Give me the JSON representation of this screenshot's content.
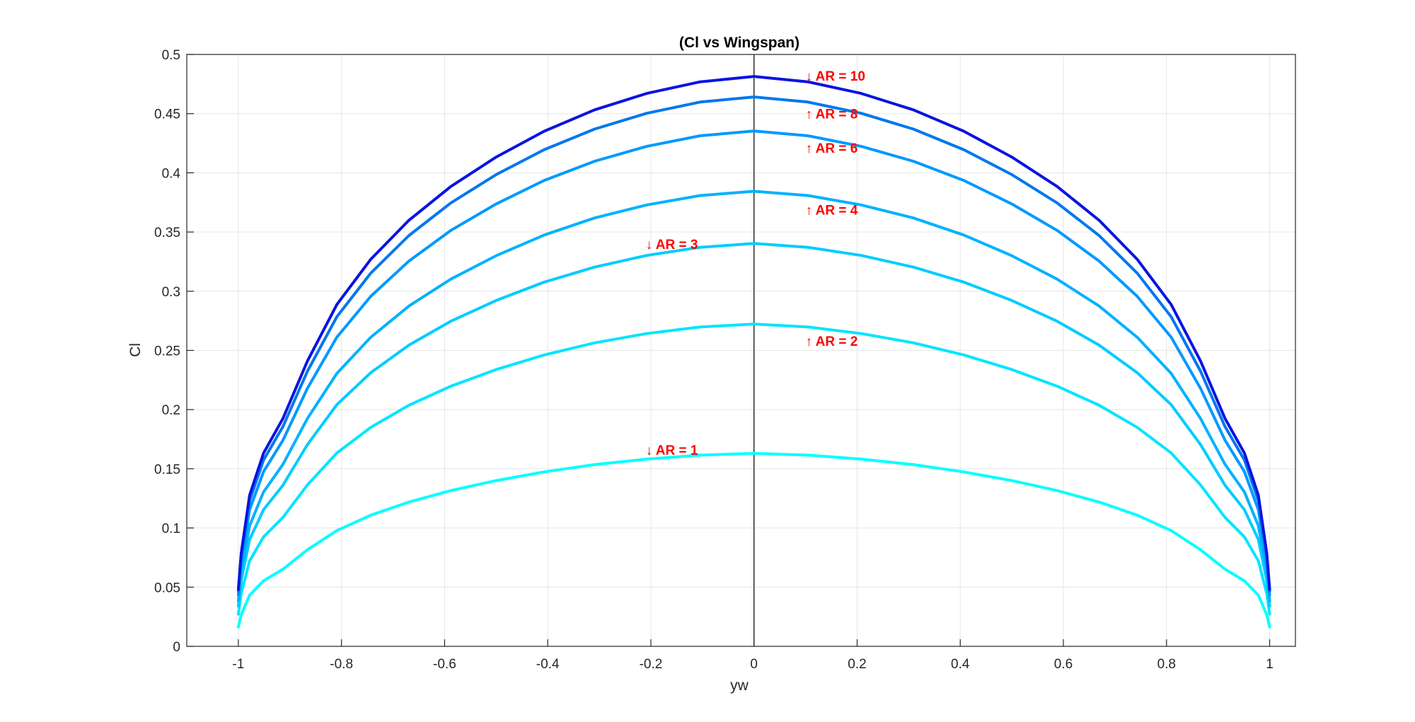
{
  "chart_data": {
    "type": "line",
    "title": "(Cl vs Wingspan)",
    "xlabel": "yw",
    "ylabel": "Cl",
    "xlim": [
      -1.1,
      1.05
    ],
    "ylim": [
      0,
      0.5
    ],
    "xticks": [
      -1,
      -0.8,
      -0.6,
      -0.4,
      -0.2,
      0,
      0.2,
      0.4,
      0.6,
      0.8,
      1
    ],
    "xtick_labels": [
      "-1",
      "-0.8",
      "-0.6",
      "-0.4",
      "-0.2",
      "0",
      "0.2",
      "0.4",
      "0.6",
      "0.8",
      "1"
    ],
    "yticks": [
      0,
      0.05,
      0.1,
      0.15,
      0.2,
      0.25,
      0.3,
      0.35,
      0.4,
      0.45,
      0.5
    ],
    "ytick_labels": [
      "0",
      "0.05",
      "0.1",
      "0.15",
      "0.2",
      "0.25",
      "0.3",
      "0.35",
      "0.4",
      "0.45",
      "0.5"
    ],
    "grid": true,
    "zero_line_x": 0,
    "x": [
      -1,
      -0.9945,
      -0.9781,
      -0.9511,
      -0.9135,
      -0.866,
      -0.809,
      -0.7431,
      -0.6691,
      -0.5878,
      -0.5,
      -0.4067,
      -0.309,
      -0.2079,
      -0.1045,
      0,
      0.1045,
      0.2079,
      0.309,
      0.4067,
      0.5,
      0.5878,
      0.6691,
      0.7431,
      0.809,
      0.866,
      0.9135,
      0.9511,
      0.9781,
      0.9945,
      1
    ],
    "series": [
      {
        "id": "ar1",
        "color": "#00ffff",
        "values": [
          0.0163,
          0.0266,
          0.0432,
          0.0553,
          0.0652,
          0.0816,
          0.0978,
          0.1108,
          0.1219,
          0.1316,
          0.14,
          0.1474,
          0.1535,
          0.1582,
          0.1615,
          0.163,
          0.1615,
          0.1582,
          0.1535,
          0.1474,
          0.14,
          0.1316,
          0.1219,
          0.1108,
          0.0978,
          0.0816,
          0.0652,
          0.0553,
          0.0432,
          0.0266,
          0.0163
        ]
      },
      {
        "id": "ar2",
        "color": "#00e5ff",
        "values": [
          0.0272,
          0.0445,
          0.0722,
          0.0924,
          0.1089,
          0.1363,
          0.1633,
          0.185,
          0.2037,
          0.2198,
          0.2338,
          0.2462,
          0.2564,
          0.2642,
          0.2698,
          0.2723,
          0.2698,
          0.2642,
          0.2564,
          0.2462,
          0.2338,
          0.2198,
          0.2037,
          0.185,
          0.1633,
          0.1363,
          0.1089,
          0.0924,
          0.0722,
          0.0445,
          0.0272
        ]
      },
      {
        "id": "ar3",
        "color": "#00ccff",
        "values": [
          0.034,
          0.0556,
          0.0902,
          0.1154,
          0.1361,
          0.1704,
          0.2041,
          0.2312,
          0.2545,
          0.2747,
          0.2922,
          0.3077,
          0.3204,
          0.3302,
          0.3371,
          0.3403,
          0.3371,
          0.3302,
          0.3204,
          0.3077,
          0.2922,
          0.2747,
          0.2545,
          0.2312,
          0.2041,
          0.1704,
          0.1361,
          0.1154,
          0.0902,
          0.0556,
          0.034
        ]
      },
      {
        "id": "ar4",
        "color": "#00b2ff",
        "values": [
          0.0384,
          0.0628,
          0.1019,
          0.1304,
          0.1537,
          0.1924,
          0.2305,
          0.2611,
          0.2875,
          0.3102,
          0.33,
          0.3475,
          0.3619,
          0.3729,
          0.3808,
          0.3844,
          0.3808,
          0.3729,
          0.3619,
          0.3475,
          0.33,
          0.3102,
          0.2875,
          0.2611,
          0.2305,
          0.1924,
          0.1537,
          0.1304,
          0.1019,
          0.0628,
          0.0384
        ]
      },
      {
        "id": "ar6",
        "color": "#0099ff",
        "values": [
          0.0435,
          0.0711,
          0.1154,
          0.1476,
          0.1741,
          0.2179,
          0.2611,
          0.2957,
          0.3255,
          0.3514,
          0.3737,
          0.3936,
          0.4098,
          0.4224,
          0.4313,
          0.4353,
          0.4313,
          0.4224,
          0.4098,
          0.3936,
          0.3737,
          0.3514,
          0.3255,
          0.2957,
          0.2611,
          0.2179,
          0.1741,
          0.1476,
          0.1154,
          0.0711,
          0.0435
        ]
      },
      {
        "id": "ar8",
        "color": "#0077ee",
        "values": [
          0.0464,
          0.0758,
          0.123,
          0.1574,
          0.1856,
          0.2324,
          0.2784,
          0.3153,
          0.3471,
          0.3746,
          0.3985,
          0.4196,
          0.437,
          0.4503,
          0.4598,
          0.4641,
          0.4598,
          0.4503,
          0.437,
          0.4196,
          0.3985,
          0.3746,
          0.3471,
          0.3153,
          0.2784,
          0.2324,
          0.1856,
          0.1574,
          0.123,
          0.0758,
          0.0464
        ]
      },
      {
        "id": "ar10",
        "color": "#0a14e0",
        "values": [
          0.0481,
          0.0786,
          0.1276,
          0.1632,
          0.1925,
          0.241,
          0.2887,
          0.327,
          0.36,
          0.3885,
          0.4133,
          0.4352,
          0.4532,
          0.4671,
          0.4769,
          0.4814,
          0.4769,
          0.4671,
          0.4532,
          0.4352,
          0.4133,
          0.3885,
          0.36,
          0.327,
          0.2887,
          0.241,
          0.1925,
          0.1632,
          0.1276,
          0.0786,
          0.0481
        ]
      }
    ],
    "annotations": [
      {
        "text": "↓ AR = 10",
        "x": 0.1,
        "y": 0.482,
        "color": "#ff0000"
      },
      {
        "text": "↑ AR = 8",
        "x": 0.1,
        "y": 0.45,
        "color": "#ff0000"
      },
      {
        "text": "↑ AR = 6",
        "x": 0.1,
        "y": 0.421,
        "color": "#ff0000"
      },
      {
        "text": "↑ AR = 4",
        "x": 0.1,
        "y": 0.369,
        "color": "#ff0000"
      },
      {
        "text": "↓ AR = 3",
        "x": -0.21,
        "y": 0.34,
        "color": "#ff0000"
      },
      {
        "text": "↑ AR = 2",
        "x": 0.1,
        "y": 0.258,
        "color": "#ff0000"
      },
      {
        "text": "↓ AR = 1",
        "x": -0.21,
        "y": 0.166,
        "color": "#ff0000"
      }
    ]
  }
}
